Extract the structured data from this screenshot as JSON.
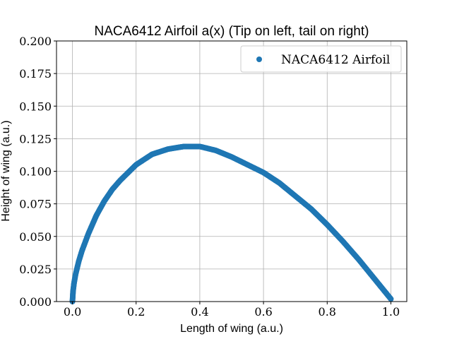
{
  "chart_data": {
    "type": "scatter",
    "title": "NACA6412 Airfoil a(x) (Tip on left, tail on right)",
    "xlabel": "Length of wing (a.u.)",
    "ylabel": "Height of wing (a.u.)",
    "xlim": [
      -0.05,
      1.05
    ],
    "ylim": [
      0.0,
      0.2
    ],
    "xticks": [
      "0.0",
      "0.2",
      "0.4",
      "0.6",
      "0.8",
      "1.0"
    ],
    "yticks": [
      "0.000",
      "0.025",
      "0.050",
      "0.075",
      "0.100",
      "0.125",
      "0.150",
      "0.175",
      "0.200"
    ],
    "grid": true,
    "legend_position": "top-right",
    "series": [
      {
        "name": "NACA6412 Airfoil",
        "color": "#1f77b4",
        "marker": "circle",
        "x": [
          0.0,
          0.002,
          0.005,
          0.01,
          0.02,
          0.03,
          0.05,
          0.075,
          0.1,
          0.125,
          0.15,
          0.2,
          0.25,
          0.3,
          0.35,
          0.375,
          0.4,
          0.45,
          0.5,
          0.55,
          0.6,
          0.65,
          0.7,
          0.75,
          0.8,
          0.85,
          0.9,
          0.95,
          0.98,
          1.0
        ],
        "y": [
          0.0,
          0.008,
          0.014,
          0.021,
          0.031,
          0.039,
          0.052,
          0.066,
          0.077,
          0.086,
          0.093,
          0.105,
          0.113,
          0.117,
          0.119,
          0.119,
          0.119,
          0.116,
          0.111,
          0.105,
          0.099,
          0.091,
          0.081,
          0.071,
          0.059,
          0.046,
          0.032,
          0.017,
          0.008,
          0.002
        ]
      }
    ]
  }
}
